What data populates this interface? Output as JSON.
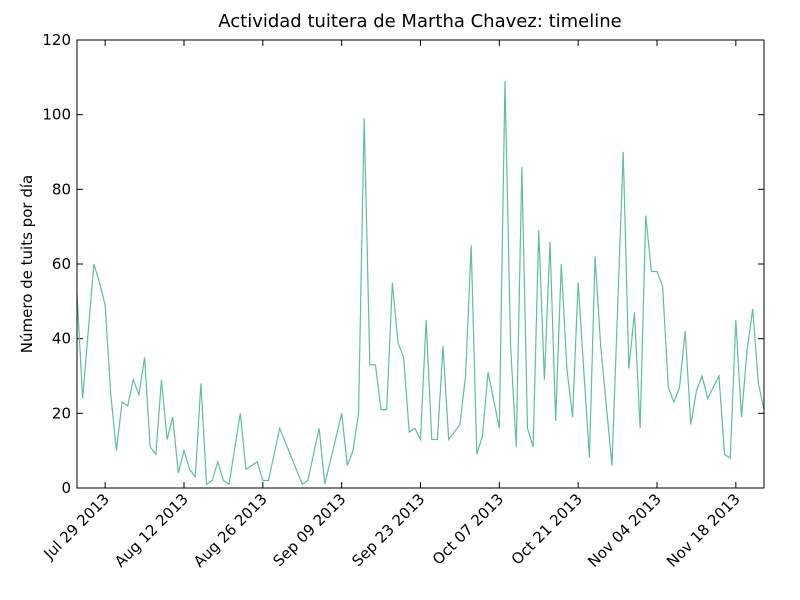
{
  "chart_data": {
    "type": "line",
    "title": "Actividad tuitera de Martha Chavez: timeline",
    "y_label": "Número de tuits por día",
    "x": [
      "2013-07-24",
      "2013-07-25",
      "2013-07-27",
      "2013-07-28",
      "2013-07-29",
      "2013-07-30",
      "2013-07-31",
      "2013-08-01",
      "2013-08-02",
      "2013-08-03",
      "2013-08-04",
      "2013-08-05",
      "2013-08-06",
      "2013-08-07",
      "2013-08-08",
      "2013-08-09",
      "2013-08-10",
      "2013-08-11",
      "2013-08-12",
      "2013-08-13",
      "2013-08-14",
      "2013-08-15",
      "2013-08-16",
      "2013-08-17",
      "2013-08-18",
      "2013-08-19",
      "2013-08-20",
      "2013-08-22",
      "2013-08-23",
      "2013-08-25",
      "2013-08-26",
      "2013-08-27",
      "2013-08-29",
      "2013-09-02",
      "2013-09-03",
      "2013-09-05",
      "2013-09-06",
      "2013-09-09",
      "2013-09-10",
      "2013-09-11",
      "2013-09-12",
      "2013-09-13",
      "2013-09-14",
      "2013-09-15",
      "2013-09-16",
      "2013-09-17",
      "2013-09-18",
      "2013-09-19",
      "2013-09-20",
      "2013-09-21",
      "2013-09-22",
      "2013-09-23",
      "2013-09-24",
      "2013-09-25",
      "2013-09-26",
      "2013-09-27",
      "2013-09-28",
      "2013-09-30",
      "2013-10-01",
      "2013-10-02",
      "2013-10-03",
      "2013-10-04",
      "2013-10-05",
      "2013-10-07",
      "2013-10-08",
      "2013-10-09",
      "2013-10-10",
      "2013-10-11",
      "2013-10-12",
      "2013-10-13",
      "2013-10-14",
      "2013-10-15",
      "2013-10-16",
      "2013-10-17",
      "2013-10-18",
      "2013-10-19",
      "2013-10-20",
      "2013-10-21",
      "2013-10-23",
      "2013-10-24",
      "2013-10-25",
      "2013-10-27",
      "2013-10-29",
      "2013-10-30",
      "2013-10-31",
      "2013-11-01",
      "2013-11-02",
      "2013-11-03",
      "2013-11-04",
      "2013-11-05",
      "2013-11-06",
      "2013-11-07",
      "2013-11-08",
      "2013-11-09",
      "2013-11-10",
      "2013-11-11",
      "2013-11-12",
      "2013-11-13",
      "2013-11-15",
      "2013-11-16",
      "2013-11-17",
      "2013-11-18",
      "2013-11-19",
      "2013-11-20",
      "2013-11-21",
      "2013-11-22",
      "2013-11-23"
    ],
    "series": [
      {
        "name": "tuits",
        "color": "#5fbf97",
        "values": [
          52,
          24,
          60,
          55,
          49,
          25,
          10,
          23,
          22,
          29,
          25,
          35,
          11,
          9,
          29,
          13,
          19,
          4,
          10,
          5,
          3,
          28,
          1,
          2,
          7,
          2,
          1,
          20,
          5,
          7,
          2,
          2,
          16,
          1,
          2,
          16,
          1,
          20,
          6,
          10,
          20,
          99,
          33,
          33,
          21,
          21,
          55,
          39,
          35,
          15,
          16,
          13,
          45,
          13,
          13,
          38,
          13,
          17,
          30,
          65,
          9,
          14,
          31,
          16,
          109,
          38,
          11,
          86,
          16,
          11,
          69,
          29,
          66,
          18,
          60,
          32,
          19,
          55,
          8,
          62,
          38,
          6,
          90,
          32,
          47,
          16,
          73,
          58,
          58,
          54,
          27,
          23,
          27,
          42,
          17,
          26,
          30,
          24,
          30,
          9,
          8,
          45,
          19,
          37,
          48,
          28,
          21
        ]
      }
    ],
    "xlim": [
      "2013-07-24",
      "2013-11-23"
    ],
    "xticks": [
      {
        "value": "2013-07-29",
        "label": "Jul 29 2013"
      },
      {
        "value": "2013-08-12",
        "label": "Aug 12 2013"
      },
      {
        "value": "2013-08-26",
        "label": "Aug 26 2013"
      },
      {
        "value": "2013-09-09",
        "label": "Sep 09 2013"
      },
      {
        "value": "2013-09-23",
        "label": "Sep 23 2013"
      },
      {
        "value": "2013-10-07",
        "label": "Oct 07 2013"
      },
      {
        "value": "2013-10-21",
        "label": "Oct 21 2013"
      },
      {
        "value": "2013-11-04",
        "label": "Nov 04 2013"
      },
      {
        "value": "2013-11-18",
        "label": "Nov 18 2013"
      }
    ],
    "ylim": [
      0,
      120
    ],
    "yticks": [
      0,
      20,
      40,
      60,
      80,
      100,
      120
    ]
  }
}
